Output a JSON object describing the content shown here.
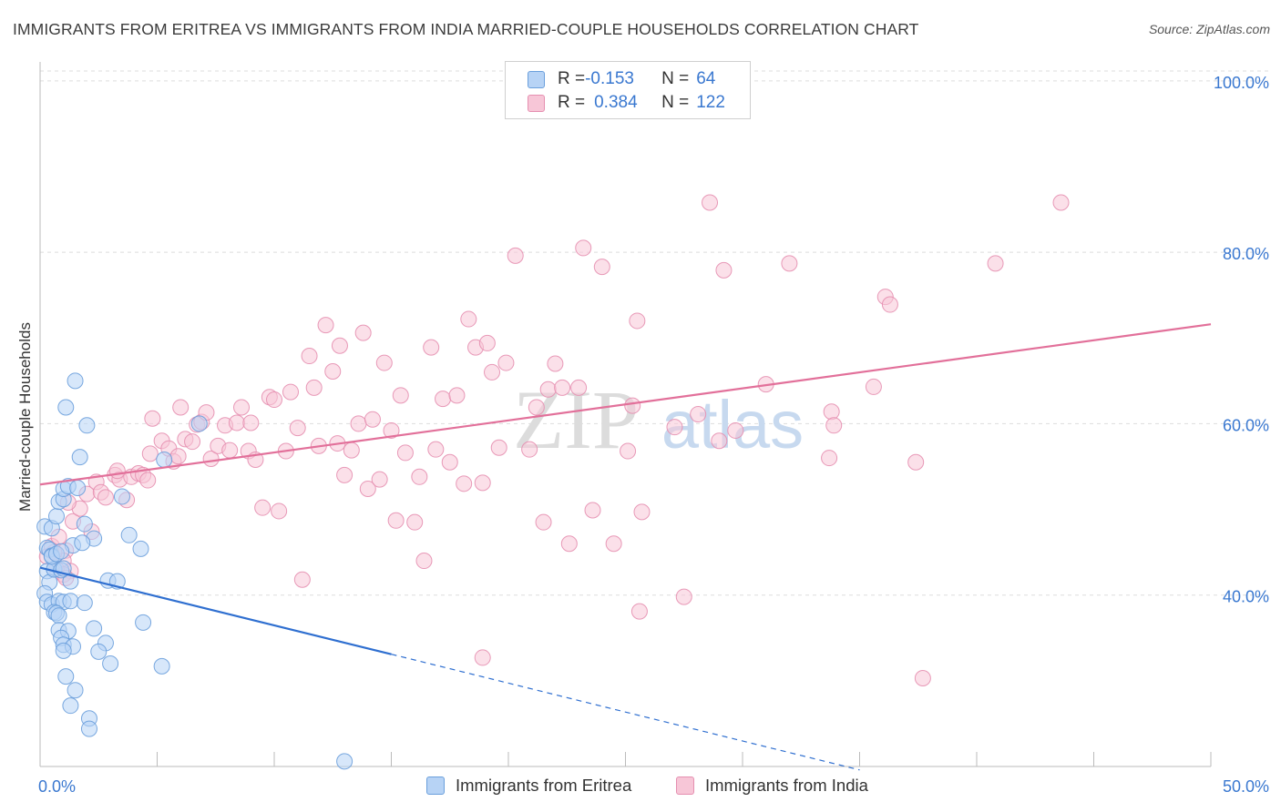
{
  "title": "IMMIGRANTS FROM ERITREA VS IMMIGRANTS FROM INDIA MARRIED-COUPLE HOUSEHOLDS CORRELATION CHART",
  "source": "Source: ZipAtlas.com",
  "legend_top": {
    "rows": [
      {
        "r_label": "R = ",
        "r_value": "-0.153",
        "n_label": "N = ",
        "n_value": "64"
      },
      {
        "r_label": "R = ",
        "r_value": "0.384",
        "n_label": "N = ",
        "n_value": "122"
      }
    ]
  },
  "watermark": {
    "zip": "ZIP",
    "atlas": "atlas"
  },
  "colors": {
    "eritrea_fill": "#b7d3f5",
    "eritrea_stroke": "#6a9fdc",
    "eritrea_line": "#2f6fd0",
    "india_fill": "#f7c6d7",
    "india_stroke": "#e58fb0",
    "india_line": "#e2709a",
    "tick_label": "#3a78d0",
    "grid": "#dddddd"
  },
  "chart_data": {
    "type": "scatter",
    "title": "IMMIGRANTS FROM ERITREA VS IMMIGRANTS FROM INDIA MARRIED-COUPLE HOUSEHOLDS CORRELATION CHART",
    "xlabel": "",
    "ylabel": "Married-couple Households",
    "xlim": [
      0,
      50
    ],
    "ylim": [
      20,
      102
    ],
    "x_tick_labels": [
      "0.0%",
      "50.0%"
    ],
    "y_ticks": [
      40,
      60,
      80,
      100
    ],
    "y_tick_labels": [
      "40.0%",
      "60.0%",
      "80.0%",
      "100.0%"
    ],
    "grid": "horizontal dashed",
    "legend_position": "top-center",
    "series": [
      {
        "name": "Immigrants from Eritrea",
        "stats": {
          "R": -0.153,
          "N": 64
        },
        "trend": {
          "x0": 0,
          "y0": 43.2,
          "x1": 15,
          "y1": 33.1,
          "dashed_to_x": 35,
          "dashed_to_y": 19.6
        },
        "points": [
          [
            0.2,
            48.0
          ],
          [
            0.3,
            45.5
          ],
          [
            0.4,
            45.3
          ],
          [
            0.5,
            44.6
          ],
          [
            0.6,
            43.0
          ],
          [
            0.3,
            42.8
          ],
          [
            0.4,
            41.5
          ],
          [
            0.2,
            40.2
          ],
          [
            0.3,
            39.2
          ],
          [
            0.5,
            38.9
          ],
          [
            0.8,
            39.3
          ],
          [
            1.0,
            39.2
          ],
          [
            1.3,
            39.3
          ],
          [
            1.9,
            39.1
          ],
          [
            0.6,
            38.0
          ],
          [
            0.7,
            37.9
          ],
          [
            0.8,
            37.6
          ],
          [
            0.8,
            35.9
          ],
          [
            1.2,
            35.8
          ],
          [
            2.3,
            36.1
          ],
          [
            0.9,
            35.0
          ],
          [
            1.0,
            34.2
          ],
          [
            1.4,
            34.0
          ],
          [
            2.8,
            34.4
          ],
          [
            1.0,
            33.5
          ],
          [
            2.5,
            33.4
          ],
          [
            3.0,
            32.0
          ],
          [
            5.2,
            31.7
          ],
          [
            1.1,
            30.5
          ],
          [
            1.5,
            28.9
          ],
          [
            1.3,
            27.1
          ],
          [
            2.1,
            25.6
          ],
          [
            2.1,
            24.4
          ],
          [
            0.5,
            47.8
          ],
          [
            0.7,
            49.2
          ],
          [
            0.8,
            50.9
          ],
          [
            1.0,
            51.2
          ],
          [
            1.0,
            52.4
          ],
          [
            1.2,
            52.7
          ],
          [
            1.6,
            52.5
          ],
          [
            2.3,
            46.6
          ],
          [
            3.8,
            47.0
          ],
          [
            4.3,
            45.4
          ],
          [
            1.4,
            45.8
          ],
          [
            1.8,
            46.1
          ],
          [
            1.9,
            48.3
          ],
          [
            1.7,
            56.1
          ],
          [
            1.5,
            65.0
          ],
          [
            1.1,
            61.9
          ],
          [
            2.0,
            59.8
          ],
          [
            3.5,
            51.5
          ],
          [
            5.3,
            55.8
          ],
          [
            6.8,
            60.0
          ],
          [
            2.9,
            41.7
          ],
          [
            3.3,
            41.6
          ],
          [
            1.3,
            41.6
          ],
          [
            4.4,
            36.8
          ],
          [
            0.6,
            43.0
          ],
          [
            0.9,
            42.9
          ],
          [
            1.0,
            43.1
          ],
          [
            0.5,
            44.5
          ],
          [
            0.7,
            44.8
          ],
          [
            0.9,
            45.1
          ],
          [
            13.0,
            20.6
          ]
        ]
      },
      {
        "name": "Immigrants from India",
        "stats": {
          "R": 0.384,
          "N": 122
        },
        "trend": {
          "x0": 0,
          "y0": 52.9,
          "x1": 50,
          "y1": 71.6
        },
        "points": [
          [
            0.3,
            44.5
          ],
          [
            0.5,
            45.7
          ],
          [
            0.8,
            46.8
          ],
          [
            1.1,
            45.2
          ],
          [
            1.0,
            44.0
          ],
          [
            1.3,
            42.8
          ],
          [
            0.7,
            43.0
          ],
          [
            1.0,
            42.4
          ],
          [
            1.1,
            42.0
          ],
          [
            0.6,
            45.0
          ],
          [
            1.4,
            48.6
          ],
          [
            1.7,
            50.1
          ],
          [
            2.0,
            51.8
          ],
          [
            2.2,
            47.4
          ],
          [
            1.2,
            50.8
          ],
          [
            2.4,
            53.2
          ],
          [
            2.6,
            52.0
          ],
          [
            2.8,
            51.4
          ],
          [
            3.2,
            54.0
          ],
          [
            3.4,
            53.5
          ],
          [
            3.7,
            51.1
          ],
          [
            3.3,
            54.5
          ],
          [
            3.9,
            53.8
          ],
          [
            4.2,
            54.2
          ],
          [
            4.4,
            54.0
          ],
          [
            4.6,
            53.4
          ],
          [
            4.7,
            56.5
          ],
          [
            4.8,
            60.6
          ],
          [
            5.2,
            58.0
          ],
          [
            5.5,
            57.1
          ],
          [
            5.7,
            55.6
          ],
          [
            5.9,
            56.2
          ],
          [
            6.0,
            61.9
          ],
          [
            6.2,
            58.2
          ],
          [
            6.5,
            57.9
          ],
          [
            6.7,
            59.9
          ],
          [
            6.9,
            60.2
          ],
          [
            7.1,
            61.3
          ],
          [
            7.3,
            55.9
          ],
          [
            7.6,
            57.4
          ],
          [
            7.9,
            59.8
          ],
          [
            8.1,
            56.9
          ],
          [
            8.4,
            60.1
          ],
          [
            8.6,
            61.9
          ],
          [
            8.9,
            56.8
          ],
          [
            9.0,
            60.1
          ],
          [
            9.2,
            55.8
          ],
          [
            9.5,
            50.2
          ],
          [
            9.8,
            63.1
          ],
          [
            10.0,
            62.8
          ],
          [
            10.2,
            49.8
          ],
          [
            10.5,
            56.8
          ],
          [
            10.7,
            63.7
          ],
          [
            11.0,
            59.5
          ],
          [
            11.2,
            41.8
          ],
          [
            11.5,
            67.9
          ],
          [
            11.7,
            64.2
          ],
          [
            11.9,
            57.4
          ],
          [
            12.2,
            71.5
          ],
          [
            12.5,
            66.1
          ],
          [
            12.7,
            57.7
          ],
          [
            12.8,
            69.1
          ],
          [
            13.0,
            54.0
          ],
          [
            13.3,
            56.9
          ],
          [
            13.6,
            60.0
          ],
          [
            13.8,
            70.6
          ],
          [
            14.0,
            52.4
          ],
          [
            14.2,
            60.5
          ],
          [
            14.5,
            53.5
          ],
          [
            14.7,
            67.1
          ],
          [
            15.0,
            59.2
          ],
          [
            15.2,
            48.7
          ],
          [
            15.4,
            63.3
          ],
          [
            15.6,
            56.6
          ],
          [
            16.0,
            48.5
          ],
          [
            16.2,
            53.8
          ],
          [
            16.4,
            44.0
          ],
          [
            16.7,
            68.9
          ],
          [
            16.9,
            57.0
          ],
          [
            17.2,
            62.9
          ],
          [
            17.5,
            55.5
          ],
          [
            17.8,
            63.3
          ],
          [
            18.1,
            53.0
          ],
          [
            18.3,
            72.2
          ],
          [
            18.6,
            68.9
          ],
          [
            18.9,
            53.1
          ],
          [
            19.1,
            69.4
          ],
          [
            19.3,
            66.0
          ],
          [
            19.6,
            57.2
          ],
          [
            19.9,
            67.1
          ],
          [
            20.3,
            79.6
          ],
          [
            20.9,
            57.0
          ],
          [
            21.2,
            61.9
          ],
          [
            21.5,
            48.5
          ],
          [
            21.7,
            64.0
          ],
          [
            22.0,
            67.0
          ],
          [
            22.3,
            64.2
          ],
          [
            22.6,
            46.0
          ],
          [
            23.0,
            64.2
          ],
          [
            23.2,
            80.5
          ],
          [
            23.6,
            49.9
          ],
          [
            24.0,
            78.3
          ],
          [
            24.5,
            46.0
          ],
          [
            25.1,
            56.8
          ],
          [
            25.3,
            62.1
          ],
          [
            25.5,
            72.0
          ],
          [
            25.6,
            38.1
          ],
          [
            25.7,
            49.7
          ],
          [
            27.1,
            59.6
          ],
          [
            27.5,
            39.8
          ],
          [
            28.1,
            61.1
          ],
          [
            28.6,
            85.8
          ],
          [
            29.0,
            58.0
          ],
          [
            29.2,
            77.9
          ],
          [
            29.7,
            59.2
          ],
          [
            31.0,
            64.6
          ],
          [
            32.0,
            78.7
          ],
          [
            33.7,
            56.0
          ],
          [
            33.8,
            61.4
          ],
          [
            33.9,
            59.8
          ],
          [
            35.6,
            64.3
          ],
          [
            36.1,
            74.8
          ],
          [
            36.3,
            73.9
          ],
          [
            37.4,
            55.5
          ],
          [
            37.7,
            30.3
          ],
          [
            40.8,
            78.7
          ],
          [
            43.6,
            85.8
          ],
          [
            18.9,
            32.7
          ]
        ]
      }
    ]
  },
  "bottom_legend": [
    {
      "label": "Immigrants from Eritrea"
    },
    {
      "label": "Immigrants from India"
    }
  ]
}
